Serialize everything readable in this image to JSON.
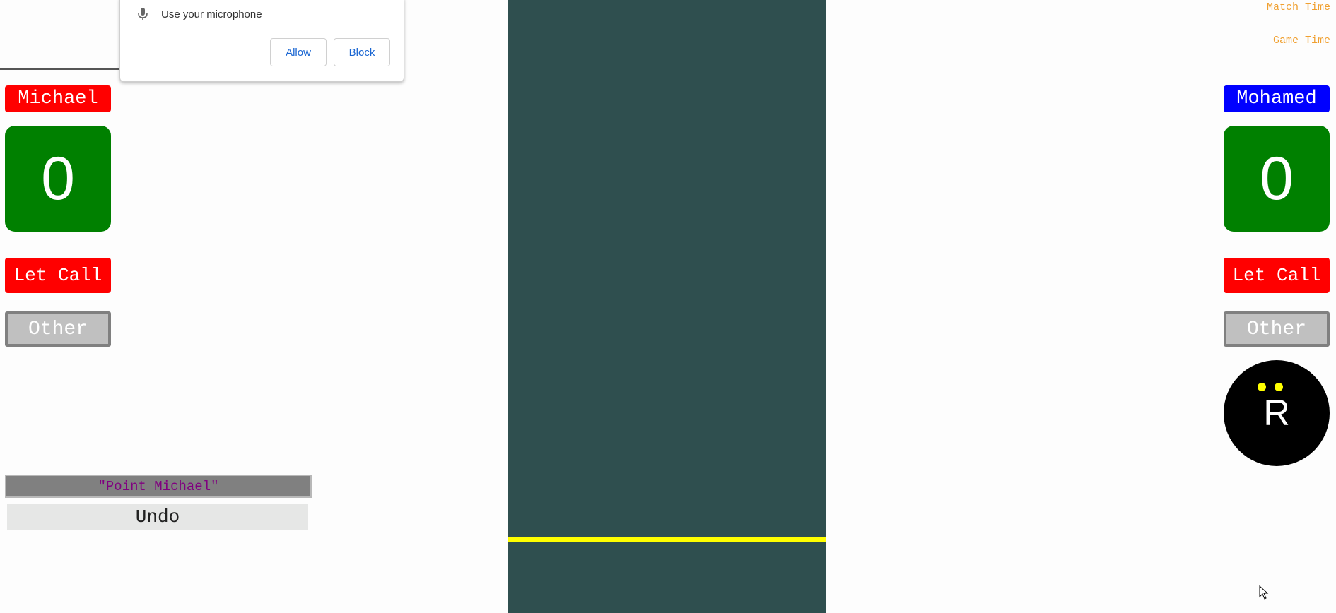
{
  "header": {
    "match_time_label": "Match Time",
    "game_time_label": "Game Time"
  },
  "permission_prompt": {
    "icon": "microphone-icon",
    "message": "Use your microphone",
    "allow_label": "Allow",
    "block_label": "Block"
  },
  "players": {
    "left": {
      "name": "Michael",
      "name_color": "#ff0000",
      "score": "0",
      "let_call_label": "Let Call",
      "other_label": "Other"
    },
    "right": {
      "name": "Mohamed",
      "name_color": "#0000ff",
      "score": "0",
      "let_call_label": "Let Call",
      "other_label": "Other"
    }
  },
  "referee": {
    "label": "R",
    "icon": "referee-face-icon"
  },
  "call_display": "\"Point Michael\"",
  "undo_label": "Undo",
  "colors": {
    "court": "#2f4f4f",
    "court_line": "#ffff00",
    "score_bg": "#008000",
    "let_call_bg": "#ff0000",
    "other_bg": "#c0c0c0",
    "time_text": "#f0a030"
  }
}
